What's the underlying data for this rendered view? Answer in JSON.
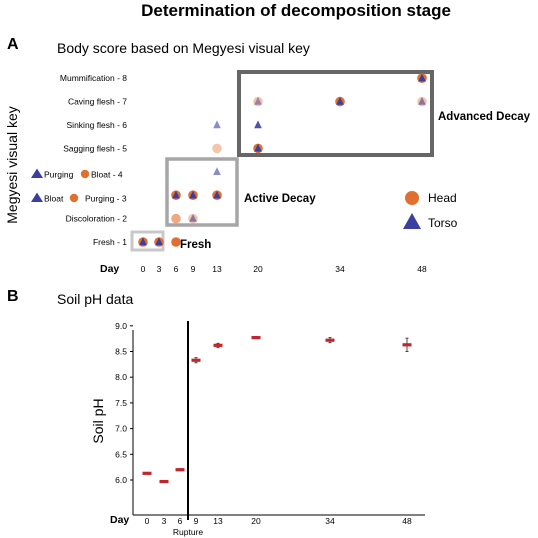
{
  "title": "Determination of decomposition stage",
  "panel_a": {
    "letter": "A",
    "subtitle": "Body score based on Megyesi visual key",
    "ylabel": "Megyesi visual key",
    "day_label": "Day",
    "side_labels": [
      {
        "sym1": "triangle",
        "text1": "Purging",
        "sym2": "circle",
        "text2": "Bloat - 4"
      },
      {
        "sym1": "triangle",
        "text1": "Bloat",
        "sym2": "circle",
        "text2": "Purging - 3"
      }
    ],
    "regions": {
      "fresh": "Fresh",
      "active": "Active Decay",
      "advanced": "Advanced Decay"
    },
    "legend": {
      "head": "Head",
      "torso": "Torso"
    }
  },
  "panel_b": {
    "letter": "B",
    "subtitle": "Soil pH data",
    "ylabel": "Soil pH",
    "day_label": "Day",
    "rupture_label": "Rupture"
  },
  "colors": {
    "head": "#e07030",
    "torso": "#3b3fa0",
    "soil": "#c0262b"
  },
  "chart_data": [
    {
      "type": "scatter",
      "title": "Body score based on Megyesi visual key",
      "ylabel": "Megyesi visual key",
      "x_categories": [
        "0",
        "3",
        "6",
        "9",
        "13",
        "20",
        "34",
        "48"
      ],
      "y_categories": [
        "Fresh - 1",
        "Discoloration - 2",
        "",
        "",
        "Sagging flesh - 5",
        "Sinking flesh - 6",
        "Caving flesh - 7",
        "Mummification - 8"
      ],
      "series": [
        {
          "name": "Head",
          "points": [
            {
              "day": "0",
              "score": 1,
              "alpha": 1
            },
            {
              "day": "3",
              "score": 1,
              "alpha": 1
            },
            {
              "day": "6",
              "score": 1,
              "alpha": 1
            },
            {
              "day": "6",
              "score": 2,
              "alpha": 0.6
            },
            {
              "day": "6",
              "score": 3,
              "alpha": 1
            },
            {
              "day": "9",
              "score": 2,
              "alpha": 0.4
            },
            {
              "day": "9",
              "score": 3,
              "alpha": 1
            },
            {
              "day": "13",
              "score": 3,
              "alpha": 1
            },
            {
              "day": "13",
              "score": 5,
              "alpha": 0.4
            },
            {
              "day": "20",
              "score": 5,
              "alpha": 1
            },
            {
              "day": "20",
              "score": 7,
              "alpha": 0.4
            },
            {
              "day": "34",
              "score": 7,
              "alpha": 1
            },
            {
              "day": "48",
              "score": 7,
              "alpha": 0.4
            },
            {
              "day": "48",
              "score": 8,
              "alpha": 1
            }
          ]
        },
        {
          "name": "Torso",
          "points": [
            {
              "day": "0",
              "score": 1,
              "alpha": 1
            },
            {
              "day": "3",
              "score": 1,
              "alpha": 1
            },
            {
              "day": "6",
              "score": 3,
              "alpha": 1
            },
            {
              "day": "9",
              "score": 2,
              "alpha": 0.6
            },
            {
              "day": "9",
              "score": 3,
              "alpha": 1
            },
            {
              "day": "13",
              "score": 3,
              "alpha": 1
            },
            {
              "day": "13",
              "score": 4,
              "alpha": 0.6
            },
            {
              "day": "13",
              "score": 6,
              "alpha": 0.6
            },
            {
              "day": "20",
              "score": 5,
              "alpha": 1
            },
            {
              "day": "20",
              "score": 6,
              "alpha": 0.9
            },
            {
              "day": "20",
              "score": 7,
              "alpha": 0.5
            },
            {
              "day": "34",
              "score": 7,
              "alpha": 1
            },
            {
              "day": "48",
              "score": 7,
              "alpha": 0.6
            },
            {
              "day": "48",
              "score": 8,
              "alpha": 1
            }
          ]
        }
      ]
    },
    {
      "type": "scatter",
      "title": "Soil pH data",
      "ylabel": "Soil pH",
      "x_categories": [
        "0",
        "3",
        "6",
        "9",
        "13",
        "20",
        "34",
        "48"
      ],
      "ylim": [
        5.6,
        9.0
      ],
      "yticks": [
        "6.0",
        "6.5",
        "7.0",
        "7.5",
        "8.0",
        "8.5",
        "9.0"
      ],
      "annotation": "Rupture",
      "series": [
        {
          "name": "Soil pH",
          "values": [
            6.13,
            5.97,
            6.2,
            8.33,
            8.62,
            8.77,
            8.72,
            8.63
          ],
          "error": [
            0.01,
            0.01,
            0.02,
            0.05,
            0.04,
            0.02,
            0.05,
            0.13
          ]
        }
      ]
    }
  ]
}
